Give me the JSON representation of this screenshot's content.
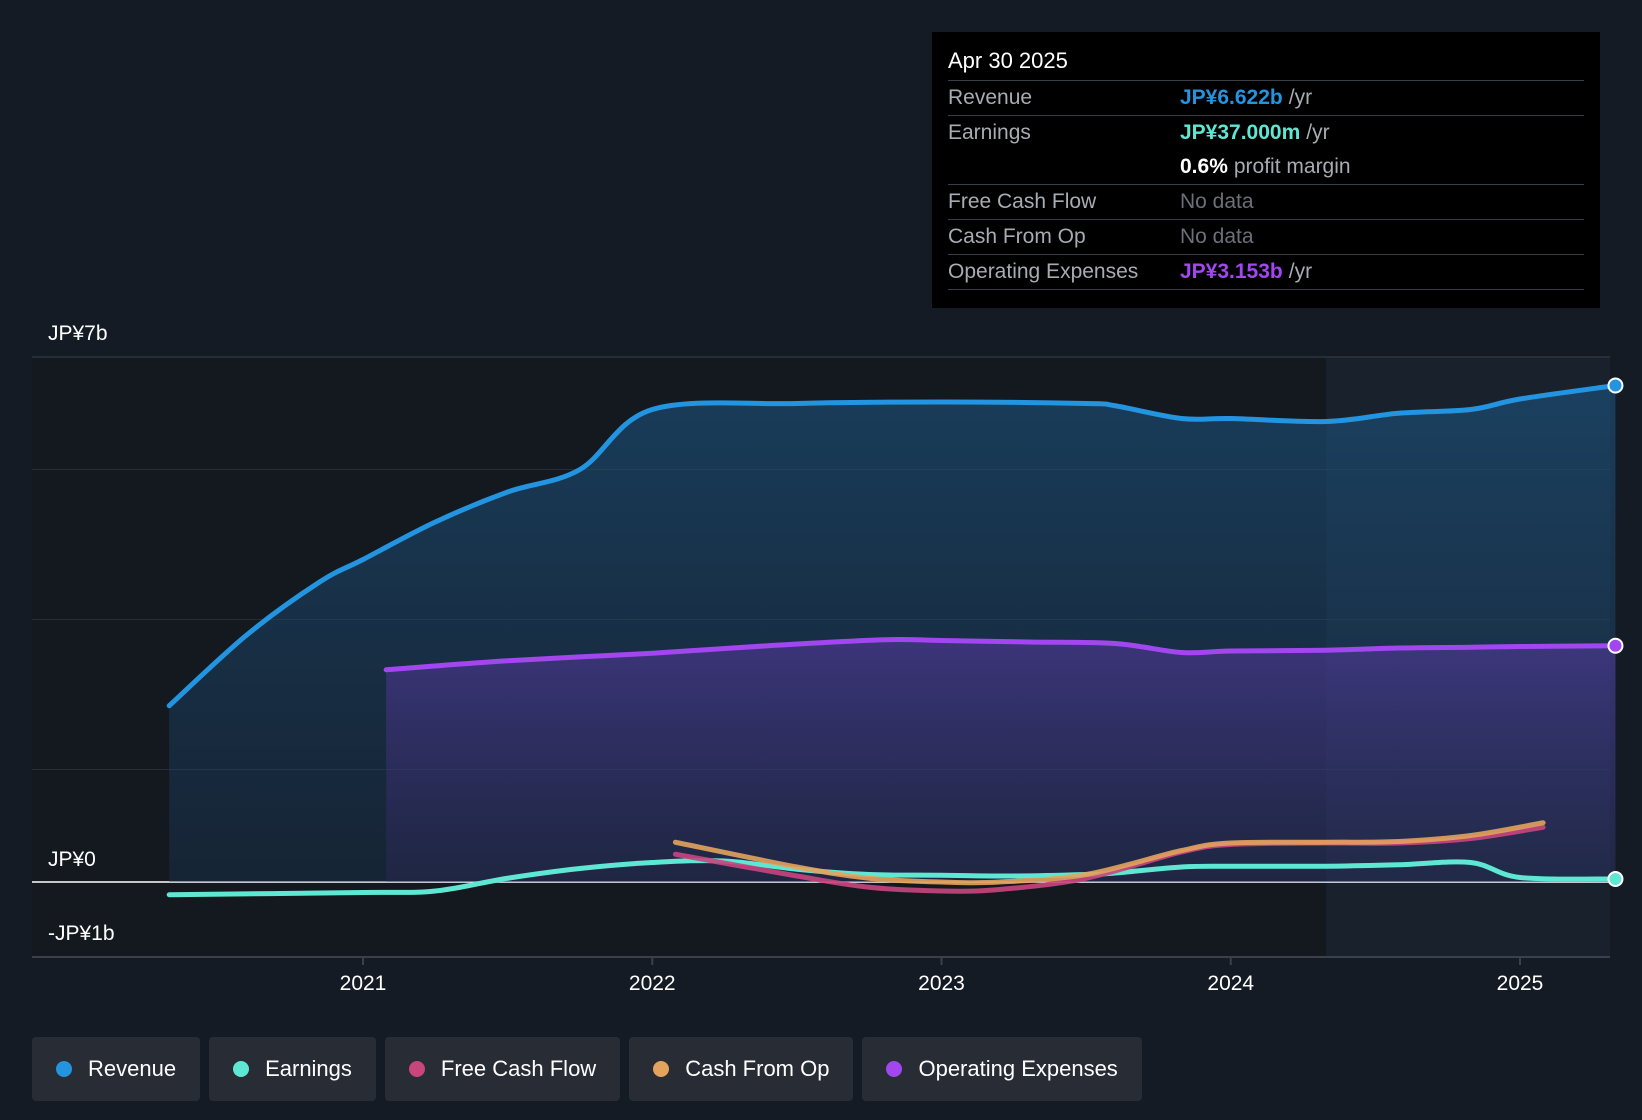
{
  "tooltip": {
    "date": "Apr 30 2025",
    "rows": [
      {
        "label": "Revenue",
        "value": "JP¥6.622b",
        "unit": "/yr",
        "color": "#2394e0"
      },
      {
        "label": "Earnings",
        "value": "JP¥37.000m",
        "unit": "/yr",
        "color": "#5ee8d4"
      },
      {
        "label": "",
        "value": "0.6%",
        "unit": "profit margin",
        "color": "#ffffff"
      },
      {
        "label": "Free Cash Flow",
        "nodata": "No data"
      },
      {
        "label": "Cash From Op",
        "nodata": "No data"
      },
      {
        "label": "Operating Expenses",
        "value": "JP¥3.153b",
        "unit": "/yr",
        "color": "#a246f0"
      }
    ]
  },
  "legend": [
    {
      "label": "Revenue",
      "color": "#2394e0"
    },
    {
      "label": "Earnings",
      "color": "#5ee8d4"
    },
    {
      "label": "Free Cash Flow",
      "color": "#c9457e"
    },
    {
      "label": "Cash From Op",
      "color": "#e3a35d"
    },
    {
      "label": "Operating Expenses",
      "color": "#a246f0"
    }
  ],
  "chart_data": {
    "type": "area",
    "y_tick_labels": [
      "JP¥7b",
      "JP¥0",
      "-JP¥1b"
    ],
    "ylim": [
      -1,
      7
    ],
    "xlim": [
      2020.1,
      2025.33
    ],
    "x_tick_labels": [
      "2021",
      "2022",
      "2023",
      "2024",
      "2025"
    ],
    "x_ticks": [
      2021,
      2022,
      2023,
      2024,
      2025
    ],
    "forecast_start": 2024.33,
    "grid": true,
    "legend_position": "bottom",
    "series": [
      {
        "name": "Revenue",
        "color": "#2394e0",
        "fill": true,
        "x": [
          2020.33,
          2020.6,
          2020.85,
          2021.0,
          2021.25,
          2021.5,
          2021.75,
          2022.0,
          2022.5,
          2023.0,
          2023.5,
          2023.6,
          2023.83,
          2024.0,
          2024.33,
          2024.58,
          2024.83,
          2025.0,
          2025.33
        ],
        "y": [
          2.35,
          3.3,
          4.0,
          4.3,
          4.8,
          5.2,
          5.5,
          6.3,
          6.38,
          6.4,
          6.38,
          6.35,
          6.18,
          6.18,
          6.14,
          6.25,
          6.3,
          6.44,
          6.62
        ]
      },
      {
        "name": "Operating Expenses",
        "color": "#a246f0",
        "fill": true,
        "x": [
          2021.08,
          2021.5,
          2022.0,
          2022.4,
          2022.8,
          2023.0,
          2023.3,
          2023.6,
          2023.83,
          2024.0,
          2024.33,
          2024.58,
          2024.83,
          2025.0,
          2025.33
        ],
        "y": [
          2.83,
          2.95,
          3.05,
          3.15,
          3.23,
          3.22,
          3.2,
          3.18,
          3.06,
          3.08,
          3.09,
          3.12,
          3.13,
          3.14,
          3.15
        ],
        "ytrue": [
          2.83,
          2.95,
          3.05,
          3.15,
          3.23,
          3.22,
          3.2,
          3.18,
          3.06,
          3.08,
          3.09,
          3.12,
          3.13,
          3.14,
          3.15
        ]
      },
      {
        "name": "Earnings",
        "color": "#5ee8d4",
        "fill": false,
        "x": [
          2020.33,
          2021.0,
          2021.25,
          2021.5,
          2021.75,
          2022.0,
          2022.25,
          2022.5,
          2022.75,
          2023.0,
          2023.25,
          2023.5,
          2023.6,
          2023.83,
          2024.0,
          2024.33,
          2024.58,
          2024.83,
          2025.0,
          2025.33
        ],
        "y": [
          -0.17,
          -0.14,
          -0.12,
          0.05,
          0.18,
          0.26,
          0.28,
          0.17,
          0.1,
          0.09,
          0.08,
          0.1,
          0.12,
          0.2,
          0.21,
          0.21,
          0.23,
          0.26,
          0.06,
          0.04
        ]
      },
      {
        "name": "Free Cash Flow",
        "color": "#c9457e",
        "fill": false,
        "x": [
          2022.08,
          2022.5,
          2022.75,
          2023.0,
          2023.2,
          2023.5,
          2023.83,
          2024.0,
          2024.33,
          2024.58,
          2024.83,
          2025.08
        ],
        "y": [
          0.37,
          0.08,
          -0.07,
          -0.12,
          -0.1,
          0.05,
          0.4,
          0.5,
          0.52,
          0.52,
          0.58,
          0.73
        ]
      },
      {
        "name": "Cash From Op",
        "color": "#e3a35d",
        "fill": false,
        "x": [
          2022.08,
          2022.5,
          2022.75,
          2023.0,
          2023.2,
          2023.5,
          2023.83,
          2024.0,
          2024.33,
          2024.58,
          2024.83,
          2025.08
        ],
        "y": [
          0.53,
          0.2,
          0.05,
          0.0,
          0.0,
          0.1,
          0.42,
          0.52,
          0.53,
          0.54,
          0.62,
          0.79
        ]
      }
    ]
  }
}
